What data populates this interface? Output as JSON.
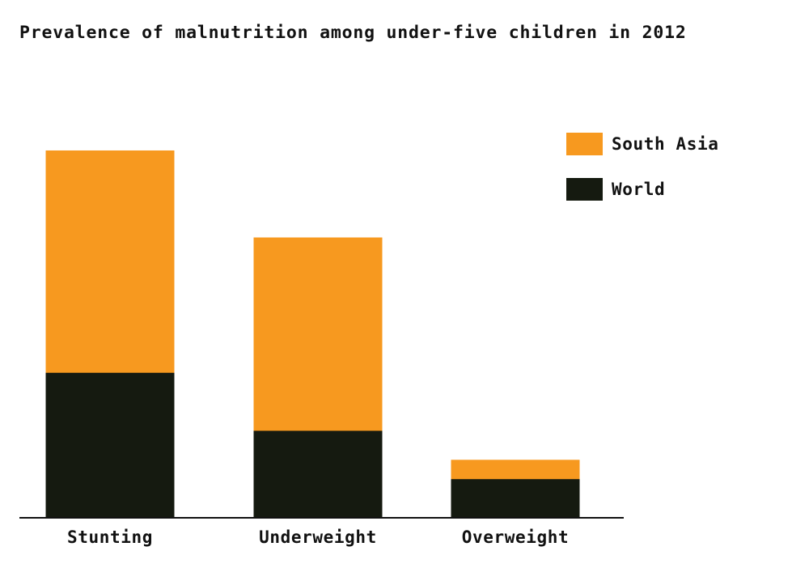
{
  "colors": {
    "south_asia": "#f7991f",
    "world": "#151a10",
    "axis": "#111111"
  },
  "chart_data": {
    "type": "bar",
    "title": "Prevalence of malnutrition among under-five children in 2012",
    "xlabel": "",
    "ylabel": "",
    "ylim": [
      0,
      38.5
    ],
    "grid": false,
    "legend_position": "top-right",
    "stacked": false,
    "overlapping": true,
    "categories": [
      "Stunting",
      "Underweight",
      "Overweight"
    ],
    "series": [
      {
        "name": "South Asia",
        "values": [
          38,
          29,
          6
        ]
      },
      {
        "name": "World",
        "values": [
          15,
          9,
          4
        ]
      }
    ]
  }
}
